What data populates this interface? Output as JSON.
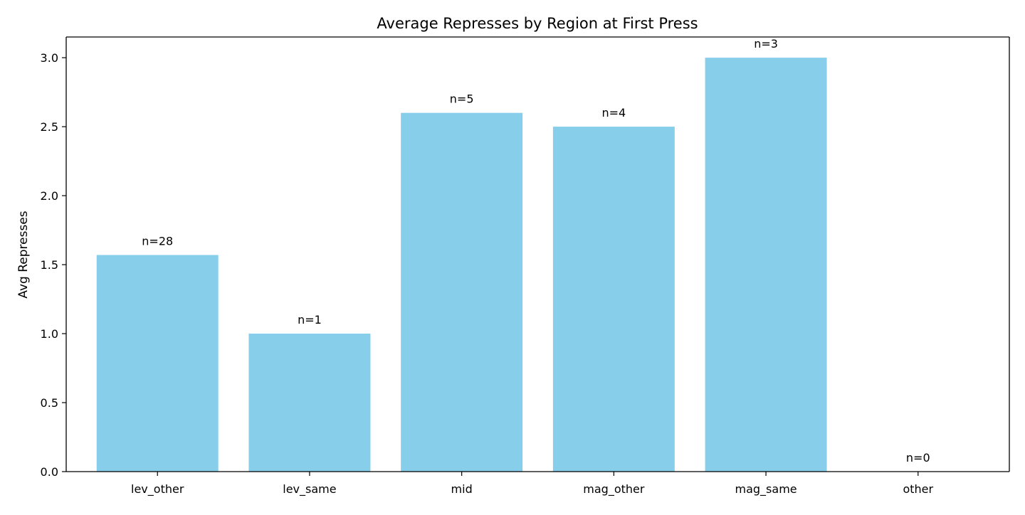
{
  "chart_data": {
    "type": "bar",
    "title": "Average Represses by Region at First Press",
    "xlabel": "",
    "ylabel": "Avg Represses",
    "categories": [
      "lev_other",
      "lev_same",
      "mid",
      "mag_other",
      "mag_same",
      "other"
    ],
    "values": [
      1.57,
      1.0,
      2.6,
      2.5,
      3.0,
      0.0
    ],
    "bar_labels": [
      "n=28",
      "n=1",
      "n=5",
      "n=4",
      "n=3",
      "n=0"
    ],
    "ylim": [
      0,
      3.15
    ],
    "yticks": [
      0.0,
      0.5,
      1.0,
      1.5,
      2.0,
      2.5,
      3.0
    ],
    "ytick_labels": [
      "0.0",
      "0.5",
      "1.0",
      "1.5",
      "2.0",
      "2.5",
      "3.0"
    ],
    "grid": false,
    "legend": "none",
    "colors": {
      "bar": "#87CEEB",
      "axis": "#000000",
      "background": "#ffffff"
    }
  }
}
